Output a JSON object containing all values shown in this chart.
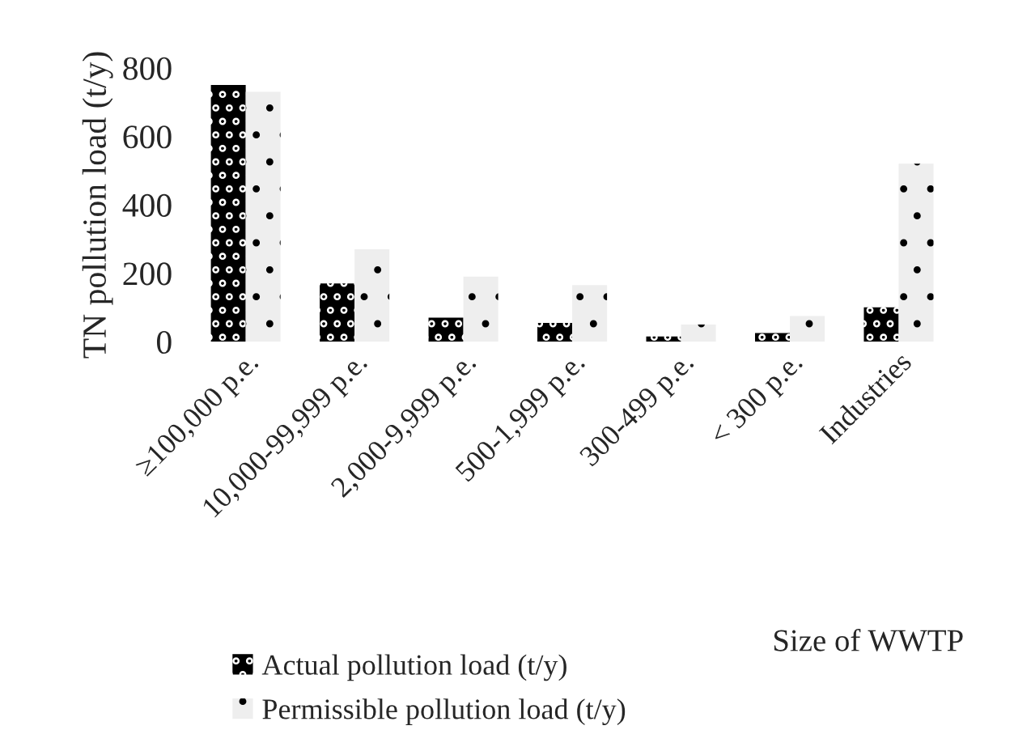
{
  "chart_data": {
    "type": "bar",
    "categories": [
      "≥100,000 p.e.",
      "10,000-99,999 p.e.",
      "2,000-9,999 p.e.",
      "500-1,999 p.e.",
      "300-499 p.e.",
      "< 300 p.e.",
      "Industries"
    ],
    "series": [
      {
        "name": "Actual pollution load (t/y)",
        "color": "#000000",
        "values": [
          750,
          170,
          70,
          55,
          15,
          25,
          100
        ]
      },
      {
        "name": "Permissible pollution load (t/y)",
        "color": "#eeeeee",
        "values": [
          730,
          270,
          190,
          165,
          50,
          75,
          520
        ]
      }
    ],
    "ylabel": "TN pollution load (t/y)",
    "xlabel": "Size of WWTP",
    "ylim": [
      0,
      800
    ],
    "yticks": [
      0,
      200,
      400,
      600,
      800
    ],
    "legend": "bottom"
  }
}
